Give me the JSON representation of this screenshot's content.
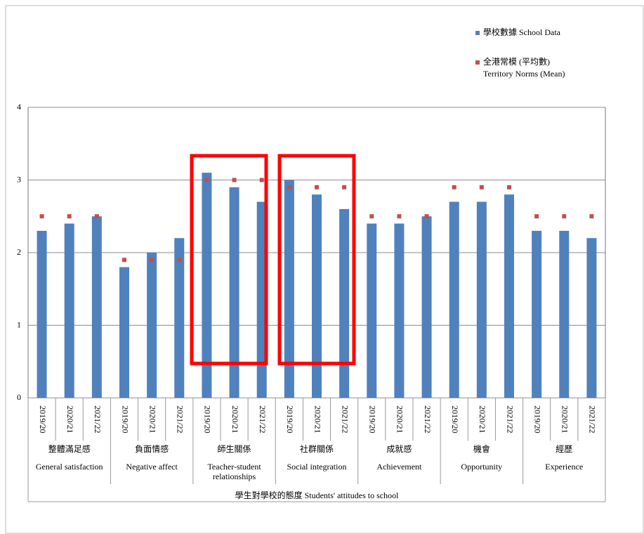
{
  "chart_data": {
    "type": "bar",
    "x_axis_label": "學生對學校的態度  Students' attitudes to school",
    "groups": [
      {
        "zh": "整體滿足感",
        "en": "General satisfaction"
      },
      {
        "zh": "負面情感",
        "en": "Negative affect"
      },
      {
        "zh": "師生關係",
        "en": "Teacher-student relationships"
      },
      {
        "zh": "社群關係",
        "en": "Social integration"
      },
      {
        "zh": "成就感",
        "en": "Achievement"
      },
      {
        "zh": "機會",
        "en": "Opportunity"
      },
      {
        "zh": "經歷",
        "en": "Experience"
      }
    ],
    "categories": [
      "2019/20",
      "2020/21",
      "2021/22",
      "2019/20",
      "2020/21",
      "2021/22",
      "2019/20",
      "2020/21",
      "2021/22",
      "2019/20",
      "2020/21",
      "2021/22",
      "2019/20",
      "2020/21",
      "2021/22",
      "2019/20",
      "2020/21",
      "2021/22",
      "2019/20",
      "2020/21",
      "2021/22"
    ],
    "series": [
      {
        "name": "學校數據  School Data",
        "color": "#4f81bd",
        "mark": "bar",
        "values": [
          2.3,
          2.4,
          2.5,
          1.8,
          2.0,
          2.2,
          3.1,
          2.9,
          2.7,
          3.0,
          2.8,
          2.6,
          2.4,
          2.4,
          2.5,
          2.7,
          2.7,
          2.8,
          2.3,
          2.3,
          2.2
        ]
      },
      {
        "name": "全港常模 (平均數)\nTerritory Norms (Mean)",
        "color": "#c0504d",
        "mark": "point",
        "values": [
          2.5,
          2.5,
          2.5,
          1.9,
          1.9,
          1.9,
          3.0,
          3.0,
          3.0,
          2.9,
          2.9,
          2.9,
          2.5,
          2.5,
          2.5,
          2.9,
          2.9,
          2.9,
          2.5,
          2.5,
          2.5
        ]
      }
    ],
    "ylim": [
      0,
      4
    ],
    "yticks": [
      0,
      1,
      2,
      3,
      4
    ],
    "grid": true
  }
}
